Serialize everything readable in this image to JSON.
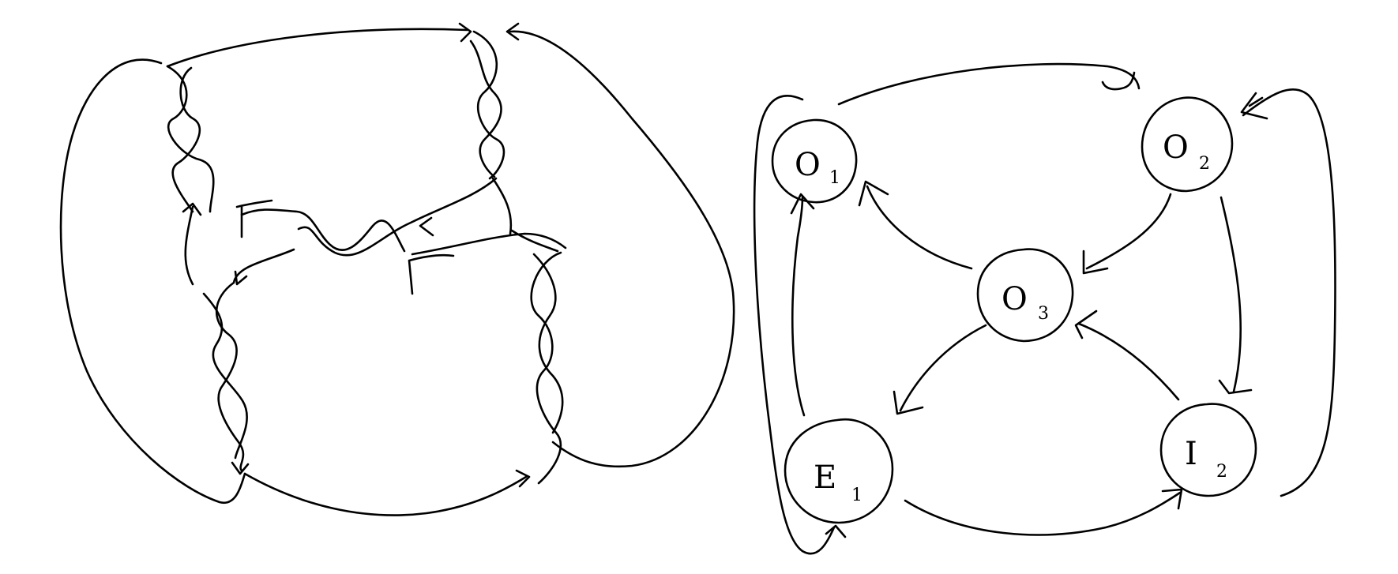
{
  "diagram": {
    "style": "hand-drawn",
    "colors": {
      "ink": "#000000",
      "background": "#ffffff"
    },
    "left_figure": {
      "kind": "braided-link-diagram"
    },
    "right_figure": {
      "kind": "state-graph",
      "nodes": [
        {
          "id": "O1",
          "letter": "O",
          "sub": "1"
        },
        {
          "id": "O2",
          "letter": "O",
          "sub": "2"
        },
        {
          "id": "O3",
          "letter": "O",
          "sub": "3"
        },
        {
          "id": "E1",
          "letter": "E",
          "sub": "1"
        },
        {
          "id": "E2",
          "letter": "I",
          "sub": "2"
        }
      ],
      "edges": [
        {
          "from": "O1",
          "to": "O2"
        },
        {
          "from": "O2",
          "to": "O2"
        },
        {
          "from": "O2",
          "to": "O3"
        },
        {
          "from": "O2",
          "to": "E2"
        },
        {
          "from": "O3",
          "to": "O1"
        },
        {
          "from": "O3",
          "to": "E1"
        },
        {
          "from": "E2",
          "to": "O3"
        },
        {
          "from": "E1",
          "to": "E2"
        },
        {
          "from": "E1",
          "to": "O1"
        },
        {
          "from": "E1",
          "to": "E1"
        }
      ]
    }
  }
}
